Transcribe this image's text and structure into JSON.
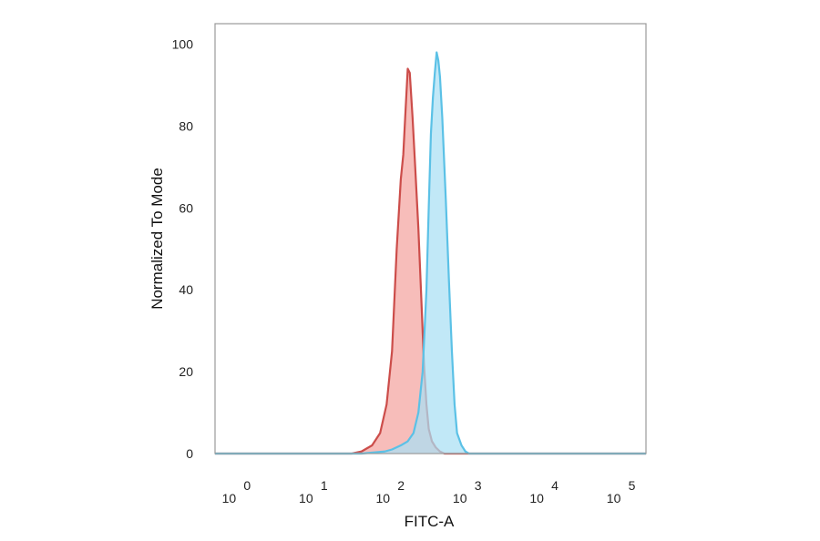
{
  "chart_data": {
    "type": "area",
    "title": "",
    "xlabel": "FITC-A",
    "ylabel": "Normalized To Mode",
    "x_scale": "log",
    "xlim": [
      0.5,
      200000
    ],
    "ylim": [
      0,
      105
    ],
    "grid": false,
    "legend": "none",
    "x_ticks": [
      {
        "base": "10",
        "exp": "0",
        "value": 1
      },
      {
        "base": "10",
        "exp": "1",
        "value": 10
      },
      {
        "base": "10",
        "exp": "2",
        "value": 100
      },
      {
        "base": "10",
        "exp": "3",
        "value": 1000
      },
      {
        "base": "10",
        "exp": "4",
        "value": 10000
      },
      {
        "base": "10",
        "exp": "5",
        "value": 100000
      }
    ],
    "y_ticks": [
      "0",
      "20",
      "40",
      "60",
      "80",
      "100"
    ],
    "series": [
      {
        "color_fill": "#f4a3a0",
        "color_line": "#cc4d4a",
        "x": [
          0.5,
          30,
          40,
          55,
          70,
          85,
          100,
          115,
          130,
          140,
          150,
          160,
          170,
          185,
          200,
          220,
          240,
          260,
          280,
          300,
          330,
          370,
          420,
          480,
          550,
          200000
        ],
        "y": [
          0,
          0,
          0.5,
          2,
          5,
          12,
          25,
          50,
          67,
          73,
          84,
          94,
          93,
          82,
          70,
          55,
          38,
          22,
          12,
          6,
          3,
          1.5,
          0.5,
          0,
          0,
          0
        ]
      },
      {
        "color_fill": "#a9dff4",
        "color_line": "#5bc1e6",
        "x": [
          0.5,
          40,
          80,
          100,
          130,
          160,
          190,
          220,
          250,
          280,
          300,
          320,
          340,
          360,
          380,
          400,
          420,
          450,
          500,
          550,
          600,
          650,
          700,
          800,
          900,
          1000,
          1100,
          200000
        ],
        "y": [
          0,
          0,
          0.5,
          1,
          2,
          3,
          5,
          10,
          20,
          40,
          60,
          78,
          87,
          93,
          98,
          96,
          92,
          82,
          62,
          42,
          25,
          12,
          5,
          2,
          0.5,
          0,
          0,
          0
        ]
      }
    ]
  }
}
